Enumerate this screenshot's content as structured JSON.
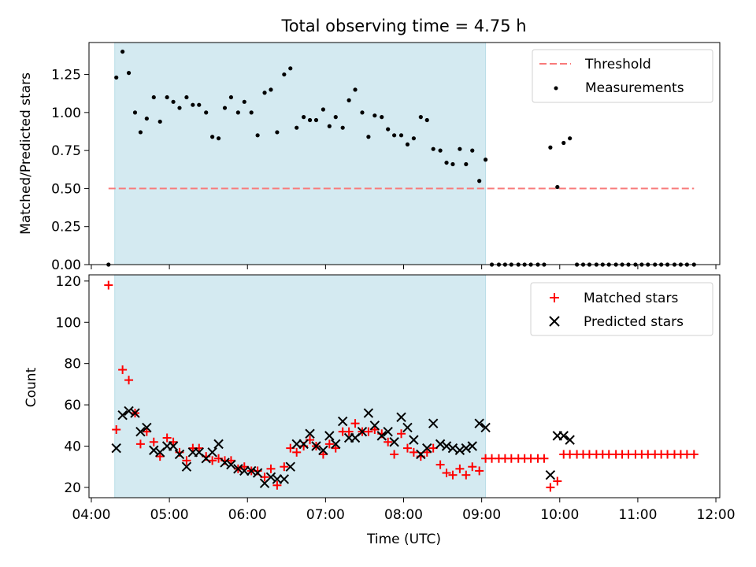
{
  "figure": {
    "title": "Total observing time = 4.75 h"
  },
  "chart_data": [
    {
      "type": "scatter",
      "ylabel": "Matched/Predicted stars",
      "xlim": [
        3.97,
        12.05
      ],
      "ylim": [
        0,
        1.46
      ],
      "yticks": [
        "0.00",
        "0.25",
        "0.50",
        "0.75",
        "1.00",
        "1.25"
      ],
      "shaded_interval": [
        4.3,
        9.05
      ],
      "shaded_color": "#d4eaf1",
      "threshold": {
        "name": "Threshold",
        "y": 0.5,
        "x_range": [
          4.22,
          11.72
        ],
        "color": "#f87a7a"
      },
      "series": [
        {
          "name": "Measurements",
          "color": "#000000",
          "points": [
            [
              4.22,
              0.0
            ],
            [
              4.32,
              1.23
            ],
            [
              4.4,
              1.4
            ],
            [
              4.48,
              1.26
            ],
            [
              4.56,
              1.0
            ],
            [
              4.63,
              0.87
            ],
            [
              4.71,
              0.96
            ],
            [
              4.8,
              1.1
            ],
            [
              4.88,
              0.94
            ],
            [
              4.97,
              1.1
            ],
            [
              5.05,
              1.07
            ],
            [
              5.13,
              1.03
            ],
            [
              5.22,
              1.1
            ],
            [
              5.3,
              1.05
            ],
            [
              5.38,
              1.05
            ],
            [
              5.47,
              1.0
            ],
            [
              5.55,
              0.84
            ],
            [
              5.63,
              0.83
            ],
            [
              5.71,
              1.03
            ],
            [
              5.79,
              1.1
            ],
            [
              5.88,
              1.0
            ],
            [
              5.96,
              1.07
            ],
            [
              6.05,
              1.0
            ],
            [
              6.13,
              0.85
            ],
            [
              6.22,
              1.13
            ],
            [
              6.3,
              1.15
            ],
            [
              6.38,
              0.87
            ],
            [
              6.47,
              1.25
            ],
            [
              6.55,
              1.29
            ],
            [
              6.63,
              0.9
            ],
            [
              6.72,
              0.97
            ],
            [
              6.8,
              0.95
            ],
            [
              6.88,
              0.95
            ],
            [
              6.97,
              1.02
            ],
            [
              7.05,
              0.91
            ],
            [
              7.13,
              0.97
            ],
            [
              7.22,
              0.9
            ],
            [
              7.3,
              1.08
            ],
            [
              7.38,
              1.15
            ],
            [
              7.47,
              1.0
            ],
            [
              7.55,
              0.84
            ],
            [
              7.63,
              0.98
            ],
            [
              7.72,
              0.97
            ],
            [
              7.8,
              0.89
            ],
            [
              7.88,
              0.85
            ],
            [
              7.97,
              0.85
            ],
            [
              8.05,
              0.79
            ],
            [
              8.13,
              0.83
            ],
            [
              8.22,
              0.97
            ],
            [
              8.3,
              0.95
            ],
            [
              8.38,
              0.76
            ],
            [
              8.47,
              0.75
            ],
            [
              8.55,
              0.67
            ],
            [
              8.63,
              0.66
            ],
            [
              8.72,
              0.76
            ],
            [
              8.8,
              0.66
            ],
            [
              8.88,
              0.75
            ],
            [
              8.97,
              0.55
            ],
            [
              9.05,
              0.69
            ],
            [
              9.13,
              0.0
            ],
            [
              9.22,
              0.0
            ],
            [
              9.3,
              0.0
            ],
            [
              9.38,
              0.0
            ],
            [
              9.47,
              0.0
            ],
            [
              9.55,
              0.0
            ],
            [
              9.63,
              0.0
            ],
            [
              9.72,
              0.0
            ],
            [
              9.8,
              0.0
            ],
            [
              9.88,
              0.77
            ],
            [
              9.97,
              0.51
            ],
            [
              10.05,
              0.8
            ],
            [
              10.13,
              0.83
            ],
            [
              10.22,
              0.0
            ],
            [
              10.3,
              0.0
            ],
            [
              10.38,
              0.0
            ],
            [
              10.47,
              0.0
            ],
            [
              10.55,
              0.0
            ],
            [
              10.63,
              0.0
            ],
            [
              10.72,
              0.0
            ],
            [
              10.8,
              0.0
            ],
            [
              10.88,
              0.0
            ],
            [
              10.97,
              0.0
            ],
            [
              11.05,
              0.0
            ],
            [
              11.13,
              0.0
            ],
            [
              11.22,
              0.0
            ],
            [
              11.3,
              0.0
            ],
            [
              11.38,
              0.0
            ],
            [
              11.47,
              0.0
            ],
            [
              11.55,
              0.0
            ],
            [
              11.63,
              0.0
            ],
            [
              11.72,
              0.0
            ]
          ]
        }
      ],
      "legend": {
        "position": "upper right",
        "entries": [
          "Threshold",
          "Measurements"
        ]
      }
    },
    {
      "type": "scatter",
      "xlabel": "Time (UTC)",
      "ylabel": "Count",
      "xlim": [
        3.97,
        12.05
      ],
      "ylim": [
        15,
        123
      ],
      "yticks": [
        "20",
        "40",
        "60",
        "80",
        "100",
        "120"
      ],
      "xticks": [
        "04:00",
        "05:00",
        "06:00",
        "07:00",
        "08:00",
        "09:00",
        "10:00",
        "11:00",
        "12:00"
      ],
      "xtick_values": [
        4,
        5,
        6,
        7,
        8,
        9,
        10,
        11,
        12
      ],
      "shaded_interval": [
        4.3,
        9.05
      ],
      "shaded_color": "#d4eaf1",
      "series": [
        {
          "name": "Matched stars",
          "marker": "plus",
          "color": "#ff0000",
          "points": [
            [
              4.22,
              118
            ],
            [
              4.32,
              48
            ],
            [
              4.4,
              77
            ],
            [
              4.48,
              72
            ],
            [
              4.56,
              56
            ],
            [
              4.63,
              41
            ],
            [
              4.71,
              47
            ],
            [
              4.8,
              42
            ],
            [
              4.88,
              35
            ],
            [
              4.97,
              44
            ],
            [
              5.05,
              42
            ],
            [
              5.13,
              37
            ],
            [
              5.22,
              33
            ],
            [
              5.3,
              39
            ],
            [
              5.38,
              39
            ],
            [
              5.47,
              35
            ],
            [
              5.55,
              33
            ],
            [
              5.63,
              34
            ],
            [
              5.71,
              33
            ],
            [
              5.79,
              33
            ],
            [
              5.88,
              29
            ],
            [
              5.96,
              30
            ],
            [
              6.05,
              28
            ],
            [
              6.13,
              28
            ],
            [
              6.22,
              25
            ],
            [
              6.3,
              29
            ],
            [
              6.38,
              21
            ],
            [
              6.47,
              30
            ],
            [
              6.55,
              39
            ],
            [
              6.63,
              37
            ],
            [
              6.72,
              40
            ],
            [
              6.8,
              43
            ],
            [
              6.88,
              40
            ],
            [
              6.97,
              36
            ],
            [
              7.05,
              41
            ],
            [
              7.13,
              39
            ],
            [
              7.22,
              47
            ],
            [
              7.3,
              47
            ],
            [
              7.38,
              51
            ],
            [
              7.47,
              47
            ],
            [
              7.55,
              47
            ],
            [
              7.63,
              48
            ],
            [
              7.72,
              46
            ],
            [
              7.8,
              42
            ],
            [
              7.88,
              36
            ],
            [
              7.97,
              46
            ],
            [
              8.05,
              39
            ],
            [
              8.13,
              37
            ],
            [
              8.22,
              35
            ],
            [
              8.3,
              37
            ],
            [
              8.38,
              39
            ],
            [
              8.47,
              31
            ],
            [
              8.55,
              27
            ],
            [
              8.63,
              26
            ],
            [
              8.72,
              29
            ],
            [
              8.8,
              26
            ],
            [
              8.88,
              30
            ],
            [
              8.97,
              28
            ],
            [
              9.05,
              34
            ],
            [
              9.13,
              34
            ],
            [
              9.22,
              34
            ],
            [
              9.3,
              34
            ],
            [
              9.38,
              34
            ],
            [
              9.47,
              34
            ],
            [
              9.55,
              34
            ],
            [
              9.63,
              34
            ],
            [
              9.72,
              34
            ],
            [
              9.8,
              34
            ],
            [
              9.88,
              20
            ],
            [
              9.97,
              23
            ],
            [
              10.05,
              36
            ],
            [
              10.13,
              36
            ],
            [
              10.22,
              36
            ],
            [
              10.3,
              36
            ],
            [
              10.38,
              36
            ],
            [
              10.47,
              36
            ],
            [
              10.55,
              36
            ],
            [
              10.63,
              36
            ],
            [
              10.72,
              36
            ],
            [
              10.8,
              36
            ],
            [
              10.88,
              36
            ],
            [
              10.97,
              36
            ],
            [
              11.05,
              36
            ],
            [
              11.13,
              36
            ],
            [
              11.22,
              36
            ],
            [
              11.3,
              36
            ],
            [
              11.38,
              36
            ],
            [
              11.47,
              36
            ],
            [
              11.55,
              36
            ],
            [
              11.63,
              36
            ],
            [
              11.72,
              36
            ]
          ]
        },
        {
          "name": "Predicted stars",
          "marker": "x",
          "color": "#000000",
          "points": [
            [
              4.32,
              39
            ],
            [
              4.4,
              55
            ],
            [
              4.48,
              57
            ],
            [
              4.56,
              56
            ],
            [
              4.63,
              47
            ],
            [
              4.71,
              49
            ],
            [
              4.8,
              38
            ],
            [
              4.88,
              37
            ],
            [
              4.97,
              40
            ],
            [
              5.05,
              40
            ],
            [
              5.13,
              36
            ],
            [
              5.22,
              30
            ],
            [
              5.3,
              37
            ],
            [
              5.38,
              37
            ],
            [
              5.47,
              34
            ],
            [
              5.55,
              37
            ],
            [
              5.63,
              41
            ],
            [
              5.71,
              32
            ],
            [
              5.79,
              31
            ],
            [
              5.88,
              29
            ],
            [
              5.96,
              28
            ],
            [
              6.05,
              28
            ],
            [
              6.13,
              27
            ],
            [
              6.22,
              22
            ],
            [
              6.3,
              25
            ],
            [
              6.38,
              24
            ],
            [
              6.47,
              24
            ],
            [
              6.55,
              30
            ],
            [
              6.63,
              41
            ],
            [
              6.72,
              41
            ],
            [
              6.8,
              46
            ],
            [
              6.88,
              40
            ],
            [
              6.97,
              38
            ],
            [
              7.05,
              45
            ],
            [
              7.13,
              41
            ],
            [
              7.22,
              52
            ],
            [
              7.3,
              44
            ],
            [
              7.38,
              44
            ],
            [
              7.47,
              47
            ],
            [
              7.55,
              56
            ],
            [
              7.63,
              50
            ],
            [
              7.72,
              45
            ],
            [
              7.8,
              47
            ],
            [
              7.88,
              42
            ],
            [
              7.97,
              54
            ],
            [
              8.05,
              49
            ],
            [
              8.13,
              43
            ],
            [
              8.22,
              36
            ],
            [
              8.3,
              39
            ],
            [
              8.38,
              51
            ],
            [
              8.47,
              41
            ],
            [
              8.55,
              40
            ],
            [
              8.63,
              39
            ],
            [
              8.72,
              38
            ],
            [
              8.8,
              39
            ],
            [
              8.88,
              40
            ],
            [
              8.97,
              51
            ],
            [
              9.05,
              49
            ],
            [
              9.88,
              26
            ],
            [
              9.97,
              45
            ],
            [
              10.05,
              45
            ],
            [
              10.13,
              43
            ]
          ]
        }
      ],
      "legend": {
        "position": "upper right",
        "entries": [
          "Matched stars",
          "Predicted stars"
        ]
      }
    }
  ]
}
